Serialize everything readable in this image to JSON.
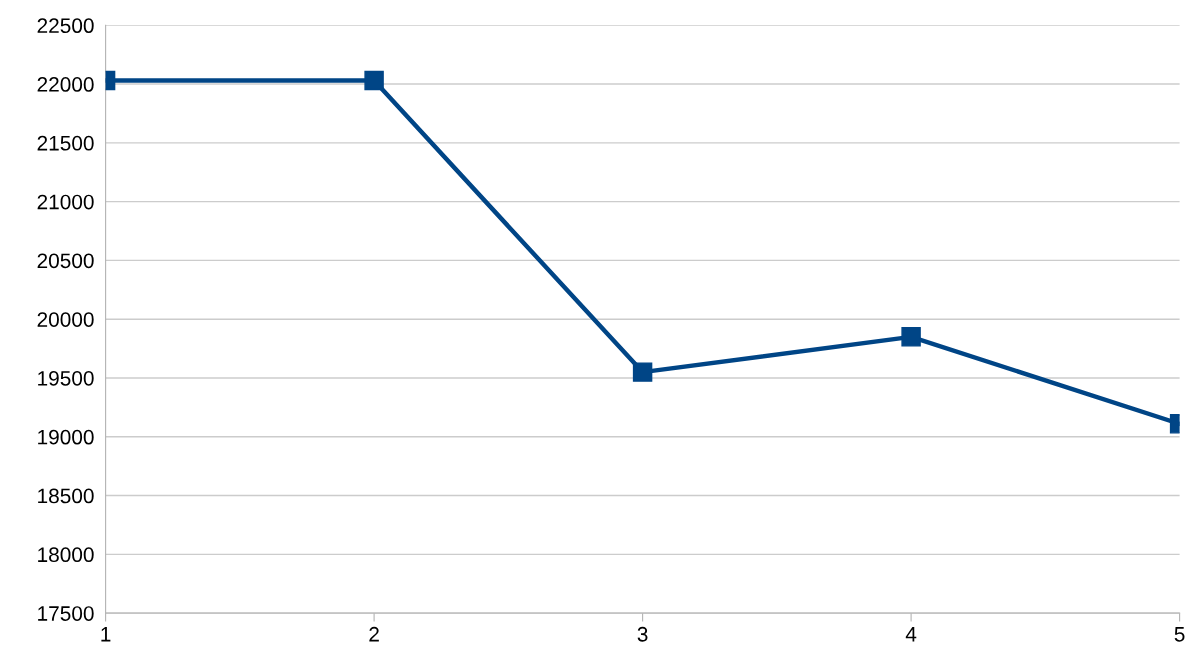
{
  "chart_data": {
    "type": "line",
    "x": [
      1,
      2,
      3,
      4,
      5
    ],
    "series": [
      {
        "color": "#004586",
        "values": [
          22030,
          22030,
          19550,
          19850,
          19110
        ]
      }
    ],
    "xlim": [
      1,
      5
    ],
    "xticks": [
      1,
      2,
      3,
      4,
      5
    ],
    "ylim": [
      17500,
      22500
    ],
    "yticks": [
      17500,
      18000,
      18500,
      19000,
      19500,
      20000,
      20500,
      21000,
      21500,
      22000,
      22500
    ],
    "grid": "y",
    "marker": "square",
    "line_style": "solid"
  }
}
